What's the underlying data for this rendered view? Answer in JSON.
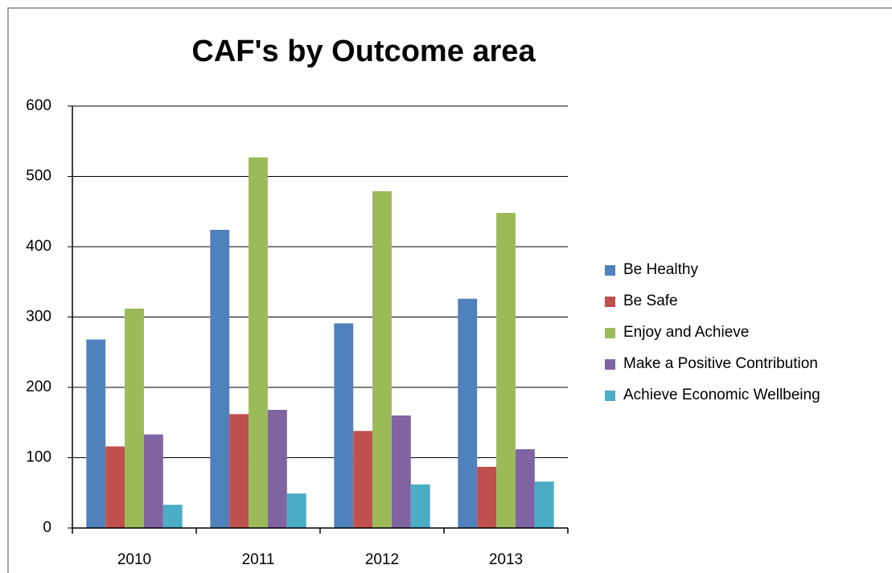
{
  "chart_data": {
    "type": "bar",
    "title": "CAF's by Outcome area",
    "categories": [
      "2010",
      "2011",
      "2012",
      "2013"
    ],
    "series": [
      {
        "name": "Be Healthy",
        "color": "#4f81bd",
        "values": [
          268,
          424,
          291,
          326
        ]
      },
      {
        "name": "Be Safe",
        "color": "#c0504d",
        "values": [
          116,
          162,
          138,
          87
        ]
      },
      {
        "name": "Enjoy and Achieve",
        "color": "#9bbb59",
        "values": [
          312,
          527,
          479,
          448
        ]
      },
      {
        "name": "Make a Positive Contribution",
        "color": "#8064a2",
        "values": [
          133,
          168,
          160,
          112
        ]
      },
      {
        "name": "Achieve Economic Wellbeing",
        "color": "#4bacc6",
        "values": [
          33,
          49,
          62,
          66
        ]
      }
    ],
    "ylim": [
      0,
      600
    ],
    "yticks": [
      0,
      100,
      200,
      300,
      400,
      500,
      600
    ],
    "grid": true,
    "legend": "right"
  }
}
